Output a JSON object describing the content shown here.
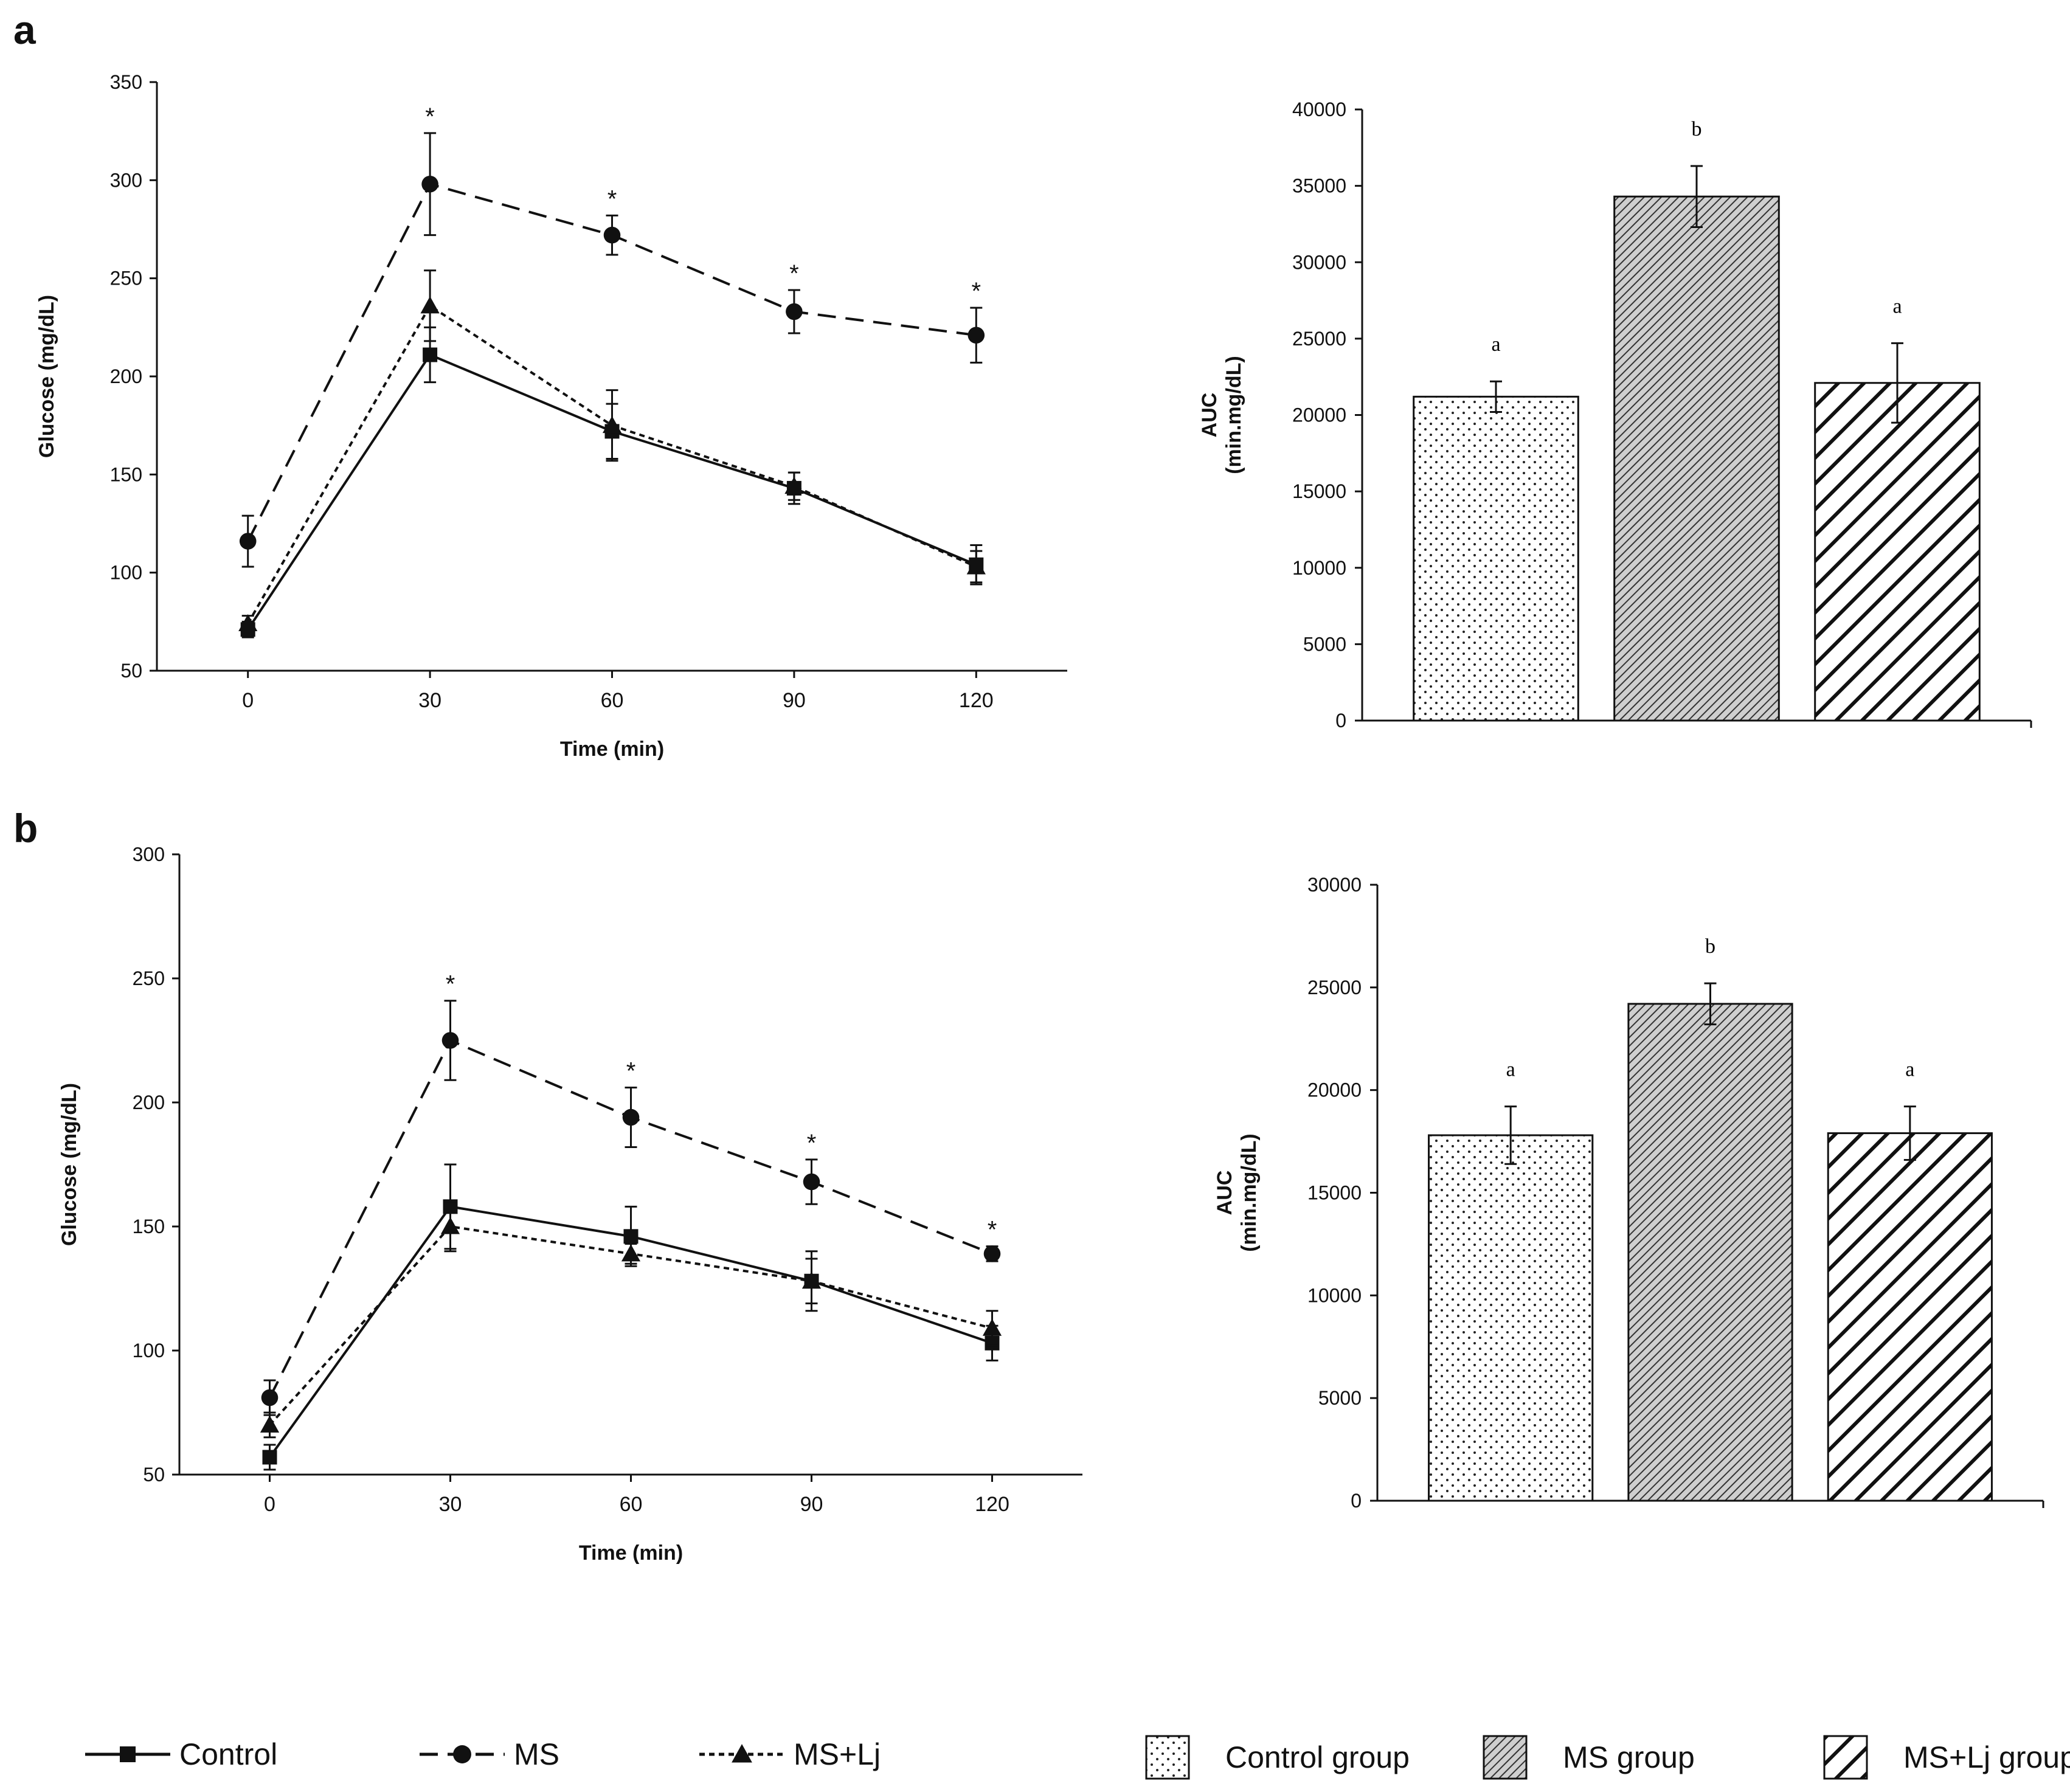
{
  "panel_labels": {
    "a": "a",
    "b": "b"
  },
  "legend_lines": [
    {
      "name": "Control",
      "marker": "square",
      "dash": "solid"
    },
    {
      "name": "MS",
      "marker": "circle",
      "dash": "long-dash"
    },
    {
      "name": "MS+Lj",
      "marker": "triangle",
      "dash": "short-dash"
    }
  ],
  "legend_bars": [
    {
      "name": "Control group",
      "pattern": "dots"
    },
    {
      "name": "MS group",
      "pattern": "fine-hatch"
    },
    {
      "name": "MS+Lj group",
      "pattern": "wide-hatch"
    }
  ],
  "colors": {
    "ink": "#111111",
    "bar_face": "#ffffff",
    "fine_hatch_bg": "#cfcfcf"
  },
  "chart_data": [
    {
      "id": "a-line",
      "type": "line",
      "title": "",
      "xlabel": "Time (min)",
      "ylabel": "Glucose (mg/dL)",
      "x": [
        0,
        30,
        60,
        90,
        120
      ],
      "xlim": [
        -15,
        135
      ],
      "ylim": [
        50,
        350
      ],
      "yticks": [
        50,
        100,
        150,
        200,
        250,
        300,
        350
      ],
      "series": [
        {
          "name": "Control",
          "values": [
            71,
            211,
            172,
            143,
            104
          ],
          "errors": [
            4,
            14,
            14,
            8,
            10
          ]
        },
        {
          "name": "MS",
          "values": [
            116,
            298,
            272,
            233,
            221
          ],
          "errors": [
            13,
            26,
            10,
            11,
            14
          ]
        },
        {
          "name": "MS+Lj",
          "values": [
            74,
            236,
            175,
            144,
            103
          ],
          "errors": [
            4,
            18,
            18,
            7,
            8
          ]
        }
      ],
      "annotations": [
        {
          "x": 30,
          "text": "*"
        },
        {
          "x": 60,
          "text": "*"
        },
        {
          "x": 90,
          "text": "*"
        },
        {
          "x": 120,
          "text": "*"
        }
      ]
    },
    {
      "id": "a-bar",
      "type": "bar",
      "title": "",
      "ylabel": "AUC",
      "ylabel2": "(min.mg/dL)",
      "categories": [
        "Control group",
        "MS group",
        "MS+Lj group"
      ],
      "values": [
        21200,
        34300,
        22100
      ],
      "errors": [
        1000,
        2000,
        2600
      ],
      "letters": [
        "a",
        "b",
        "a"
      ],
      "ylim": [
        0,
        40000
      ],
      "yticks": [
        0,
        5000,
        10000,
        15000,
        20000,
        25000,
        30000,
        35000,
        40000
      ]
    },
    {
      "id": "b-line",
      "type": "line",
      "title": "",
      "xlabel": "Time (min)",
      "ylabel": "Glucose (mg/dL)",
      "x": [
        0,
        30,
        60,
        90,
        120
      ],
      "xlim": [
        -15,
        135
      ],
      "ylim": [
        50,
        300
      ],
      "yticks": [
        50,
        100,
        150,
        200,
        250,
        300
      ],
      "series": [
        {
          "name": "Control",
          "values": [
            57,
            158,
            146,
            128,
            103
          ],
          "errors": [
            5,
            17,
            12,
            12,
            7
          ]
        },
        {
          "name": "MS",
          "values": [
            81,
            225,
            194,
            168,
            139
          ],
          "errors": [
            7,
            16,
            12,
            9,
            3
          ]
        },
        {
          "name": "MS+Lj",
          "values": [
            70,
            150,
            139,
            128,
            109
          ],
          "errors": [
            5,
            10,
            4,
            9,
            7
          ]
        }
      ],
      "annotations": [
        {
          "x": 30,
          "text": "*"
        },
        {
          "x": 60,
          "text": "*"
        },
        {
          "x": 90,
          "text": "*"
        },
        {
          "x": 120,
          "text": "*"
        }
      ]
    },
    {
      "id": "b-bar",
      "type": "bar",
      "title": "",
      "ylabel": "AUC",
      "ylabel2": "(min.mg/dL)",
      "categories": [
        "Control group",
        "MS group",
        "MS+Lj group"
      ],
      "values": [
        17800,
        24200,
        17900
      ],
      "errors": [
        1400,
        1000,
        1300
      ],
      "letters": [
        "a",
        "b",
        "a"
      ],
      "ylim": [
        0,
        30000
      ],
      "yticks": [
        0,
        5000,
        10000,
        15000,
        20000,
        25000,
        30000
      ]
    }
  ]
}
